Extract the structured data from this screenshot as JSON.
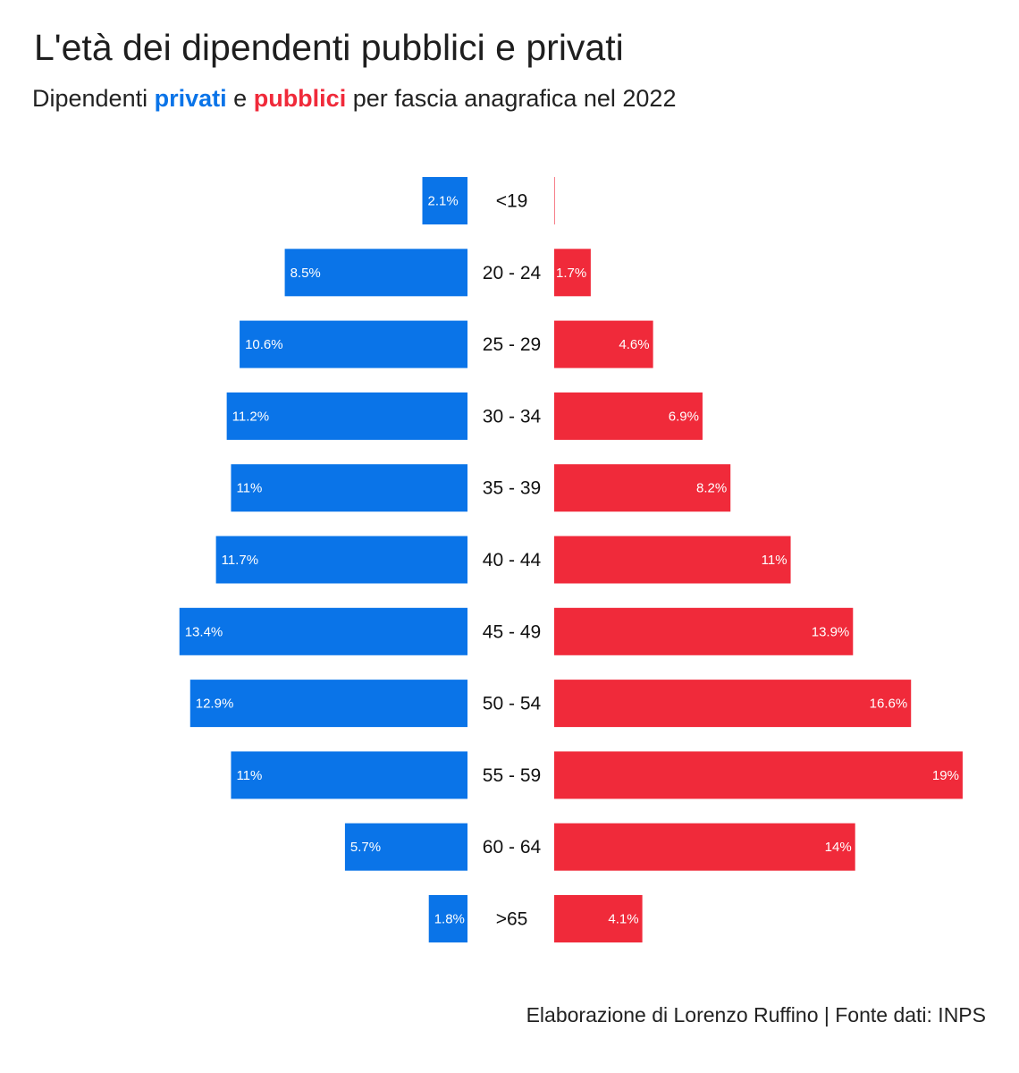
{
  "chart_data": {
    "type": "bar",
    "title": "L'età dei dipendenti pubblici e privati",
    "subtitle": {
      "prefix": "Dipendenti",
      "private_word": "privati",
      "connector": "e",
      "public_word": "pubblici",
      "suffix": "per fascia anagrafica nel 2022"
    },
    "categories": [
      "<19",
      "20 - 24",
      "25 - 29",
      "30 - 34",
      "35 - 39",
      "40 - 44",
      "45 - 49",
      "50 - 54",
      "55 - 59",
      "60 - 64",
      ">65"
    ],
    "series": [
      {
        "name": "privati",
        "color": "#0a74e8",
        "values": [
          2.1,
          8.5,
          10.6,
          11.2,
          11,
          11.7,
          13.4,
          12.9,
          11,
          5.7,
          1.8
        ],
        "labels": [
          "2.1%",
          "8.5%",
          "10.6%",
          "11.2%",
          "11%",
          "11.7%",
          "13.4%",
          "12.9%",
          "11%",
          "5.7%",
          "1.8%"
        ]
      },
      {
        "name": "pubblici",
        "color": "#f02a3a",
        "values": [
          0,
          1.7,
          4.6,
          6.9,
          8.2,
          11,
          13.9,
          16.6,
          19,
          14,
          4.1
        ],
        "labels": [
          "",
          "1.7%",
          "4.6%",
          "6.9%",
          "8.2%",
          "11%",
          "13.9%",
          "16.6%",
          "19%",
          "14%",
          "4.1%"
        ]
      }
    ],
    "unit": "%",
    "grid": false,
    "legend": "in subtitle",
    "caption": "Elaborazione di Lorenzo Ruffino | Fonte dati: INPS"
  }
}
